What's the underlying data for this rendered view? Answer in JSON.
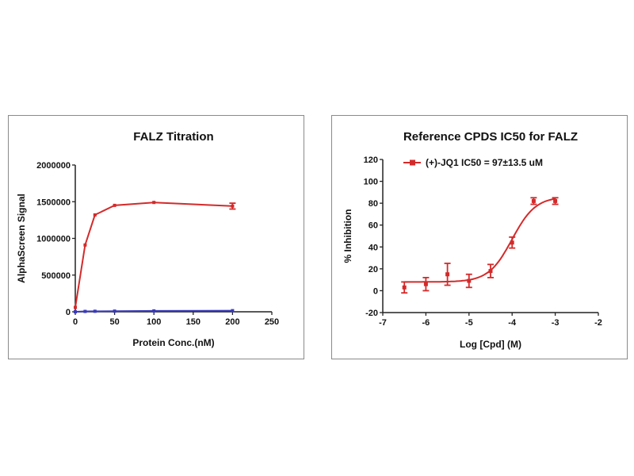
{
  "chart_data": [
    {
      "type": "line",
      "title": "FALZ Titration",
      "xlabel": "Protein Conc.(nM)",
      "ylabel": "AlphaScreen Signal",
      "xlim": [
        0,
        250
      ],
      "ylim": [
        0,
        2000000
      ],
      "x_ticks": [
        "0",
        "50",
        "100",
        "150",
        "200",
        "250"
      ],
      "y_ticks": [
        "0",
        "500000",
        "1000000",
        "1500000",
        "2000000"
      ],
      "legend": false,
      "series": [
        {
          "color": "#d42a2a",
          "x": [
            0,
            12.5,
            25,
            50,
            100,
            200
          ],
          "y": [
            60000,
            910000,
            1320000,
            1450000,
            1490000,
            1440000
          ],
          "err": [
            0,
            0,
            0,
            0,
            0,
            40000
          ]
        },
        {
          "color": "#3a3ab8",
          "x": [
            0,
            12.5,
            25,
            50,
            100,
            200
          ],
          "y": [
            0,
            5000,
            7000,
            9000,
            12000,
            15000
          ],
          "err": [
            0,
            0,
            0,
            0,
            0,
            0
          ]
        }
      ]
    },
    {
      "type": "scatter",
      "title": "Reference CPDS IC50 for FALZ",
      "xlabel": "Log [Cpd] (M)",
      "ylabel": "% Inhibition",
      "xlim": [
        -7,
        -2
      ],
      "ylim": [
        -20,
        120
      ],
      "x_ticks": [
        "-7",
        "-6",
        "-5",
        "-4",
        "-3",
        "-2"
      ],
      "y_ticks": [
        "-20",
        "0",
        "20",
        "40",
        "60",
        "80",
        "100",
        "120"
      ],
      "legend": "top",
      "series": [
        {
          "name": "(+)-JQ1 IC50 = 97±13.5 uM",
          "color": "#d42a2a",
          "x": [
            -6.5,
            -6.0,
            -5.5,
            -5.0,
            -4.5,
            -4.0,
            -3.5,
            -3.0
          ],
          "y": [
            3,
            6,
            15,
            9,
            18,
            44,
            82,
            82
          ],
          "err": [
            5,
            6,
            10,
            6,
            6,
            5,
            3,
            3
          ],
          "fit": {
            "bottom": 8,
            "top": 86,
            "log_ic50": -4.0,
            "hill": 1.6
          }
        }
      ]
    }
  ]
}
